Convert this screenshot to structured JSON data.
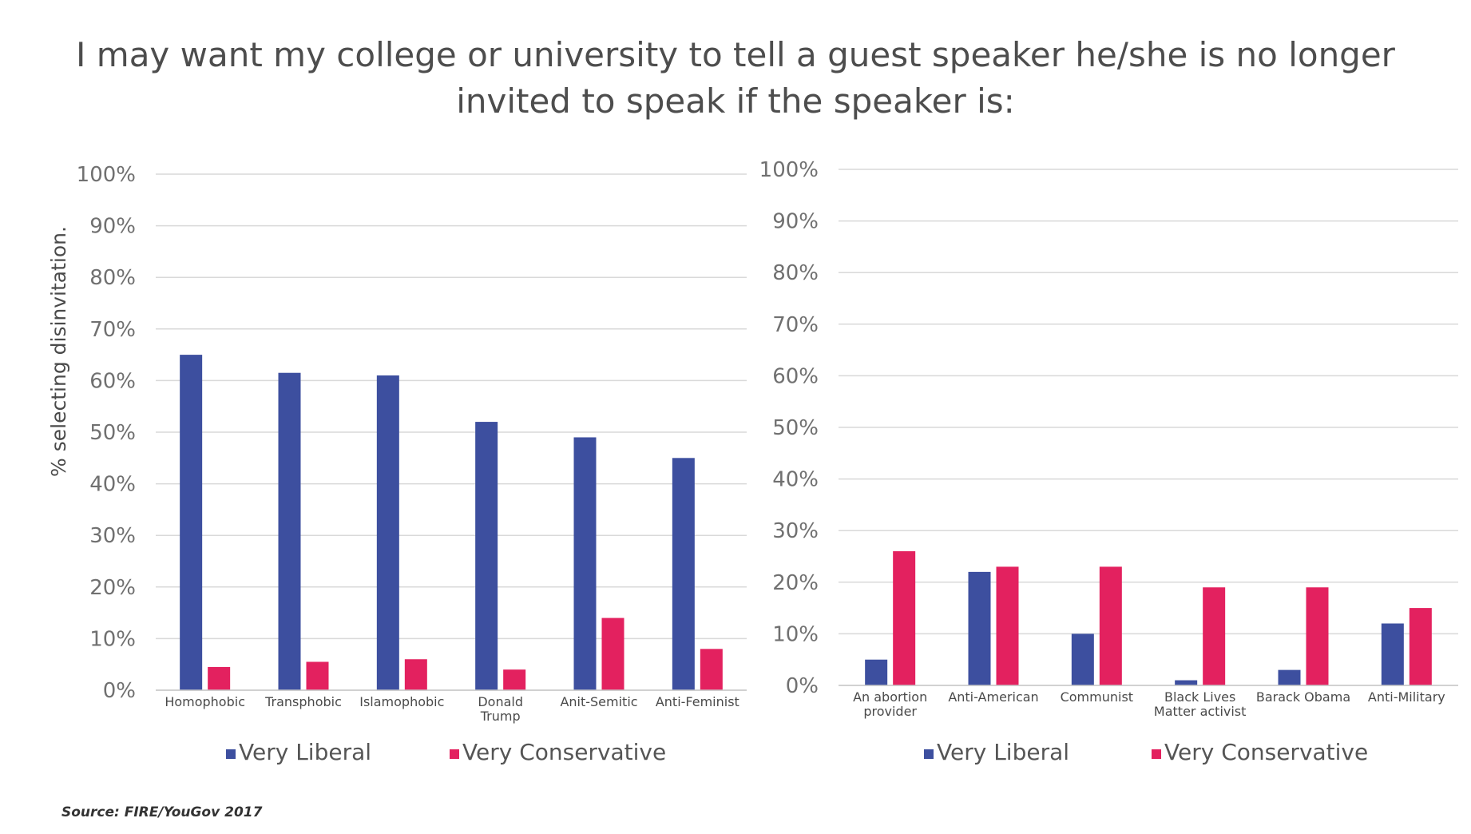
{
  "title": {
    "line1": "I may want my college or university to tell a guest speaker he/she is no longer",
    "line2": "invited to speak if the speaker is:"
  },
  "source": "Source: FIRE/YouGov 2017",
  "colors": {
    "very_liberal": "#3d4f9f",
    "very_conservative": "#e3215f",
    "grid": "#d9d9d9",
    "axis_text": "#707070",
    "category_text": "#4a4a4a"
  },
  "chart_data": [
    {
      "type": "bar",
      "ylabel": "% selecting disinvitation.",
      "ylim": [
        0,
        100
      ],
      "y_ticks": [
        "0%",
        "10%",
        "20%",
        "30%",
        "40%",
        "50%",
        "60%",
        "70%",
        "80%",
        "90%",
        "100%"
      ],
      "categories": [
        [
          "Homophobic"
        ],
        [
          "Transphobic"
        ],
        [
          "Islamophobic"
        ],
        [
          "Donald",
          "Trump"
        ],
        [
          "Anit-Semitic"
        ],
        [
          "Anti-Feminist"
        ]
      ],
      "series": [
        {
          "name": "Very Liberal",
          "values": [
            65,
            61.5,
            61,
            52,
            49,
            45
          ]
        },
        {
          "name": "Very Conservative",
          "values": [
            4.5,
            5.5,
            6,
            4,
            14,
            8
          ]
        }
      ],
      "legend": "bottom",
      "grid": true
    },
    {
      "type": "bar",
      "ylabel": "",
      "ylim": [
        0,
        100
      ],
      "y_ticks": [
        "0%",
        "10%",
        "20%",
        "30%",
        "40%",
        "50%",
        "60%",
        "70%",
        "80%",
        "90%",
        "100%"
      ],
      "categories": [
        [
          "An abortion",
          "provider"
        ],
        [
          "Anti-American"
        ],
        [
          "Communist"
        ],
        [
          "Black Lives",
          "Matter activist"
        ],
        [
          "Barack Obama"
        ],
        [
          "Anti-Military"
        ]
      ],
      "series": [
        {
          "name": "Very Liberal",
          "values": [
            5,
            22,
            10,
            1,
            3,
            12
          ]
        },
        {
          "name": "Very Conservative",
          "values": [
            26,
            23,
            23,
            19,
            19,
            15
          ]
        }
      ],
      "legend": "bottom",
      "grid": true
    }
  ]
}
